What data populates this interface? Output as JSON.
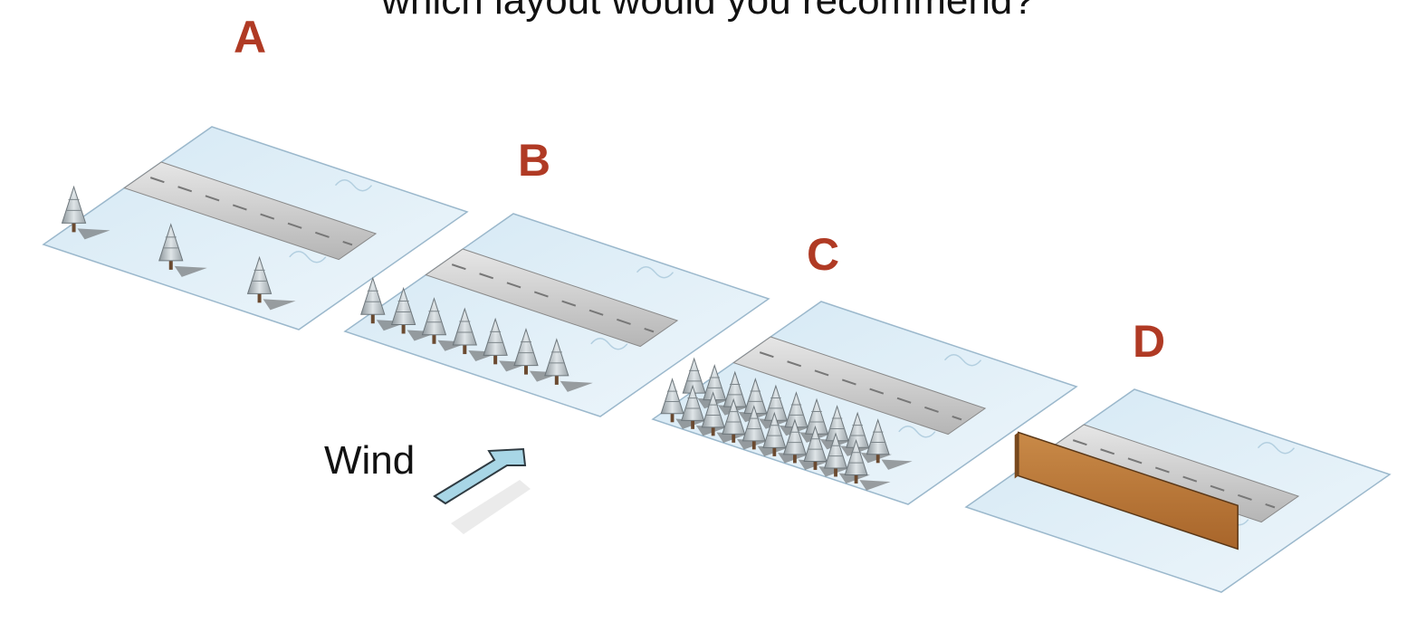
{
  "question": "which layout would you recommend?",
  "options": [
    {
      "label": "A",
      "description": "scattered trees"
    },
    {
      "label": "B",
      "description": "single row of trees"
    },
    {
      "label": "C",
      "description": "dense double row of trees"
    },
    {
      "label": "D",
      "description": "solid fence"
    }
  ],
  "wind": {
    "label": "Wind"
  },
  "colors": {
    "label": "#b03a24",
    "snow": "#dcecf6",
    "road": "#c9c9c9",
    "fence": "#c07b3a",
    "tree": "#b9c2c6",
    "arrow": "#9fcfe0"
  }
}
